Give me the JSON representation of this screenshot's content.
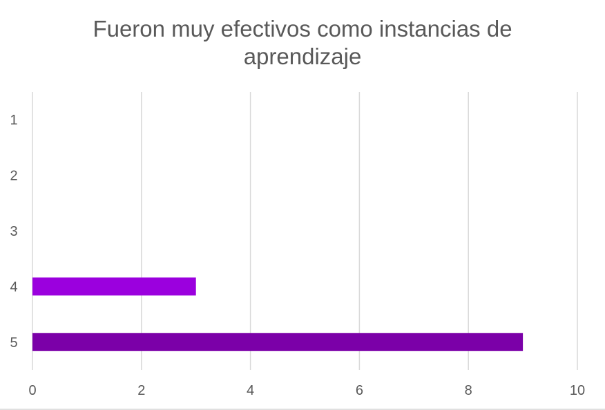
{
  "chart_data": {
    "type": "bar",
    "orientation": "horizontal",
    "title": "Fueron muy efectivos como instancias de aprendizaje",
    "title_lines": [
      "Fueron muy efectivos como instancias de",
      "aprendizaje"
    ],
    "categories": [
      "1",
      "2",
      "3",
      "4",
      "5"
    ],
    "values": [
      0,
      0,
      0,
      3,
      9
    ],
    "bar_colors": [
      "#9B00DE",
      "#9B00DE",
      "#9B00DE",
      "#9B00DE",
      "#7B00A8"
    ],
    "xlim": [
      0,
      10
    ],
    "xticks": [
      "0",
      "2",
      "4",
      "6",
      "8",
      "10"
    ],
    "xlabel": "",
    "ylabel": "",
    "grid": true,
    "legend": "none"
  }
}
